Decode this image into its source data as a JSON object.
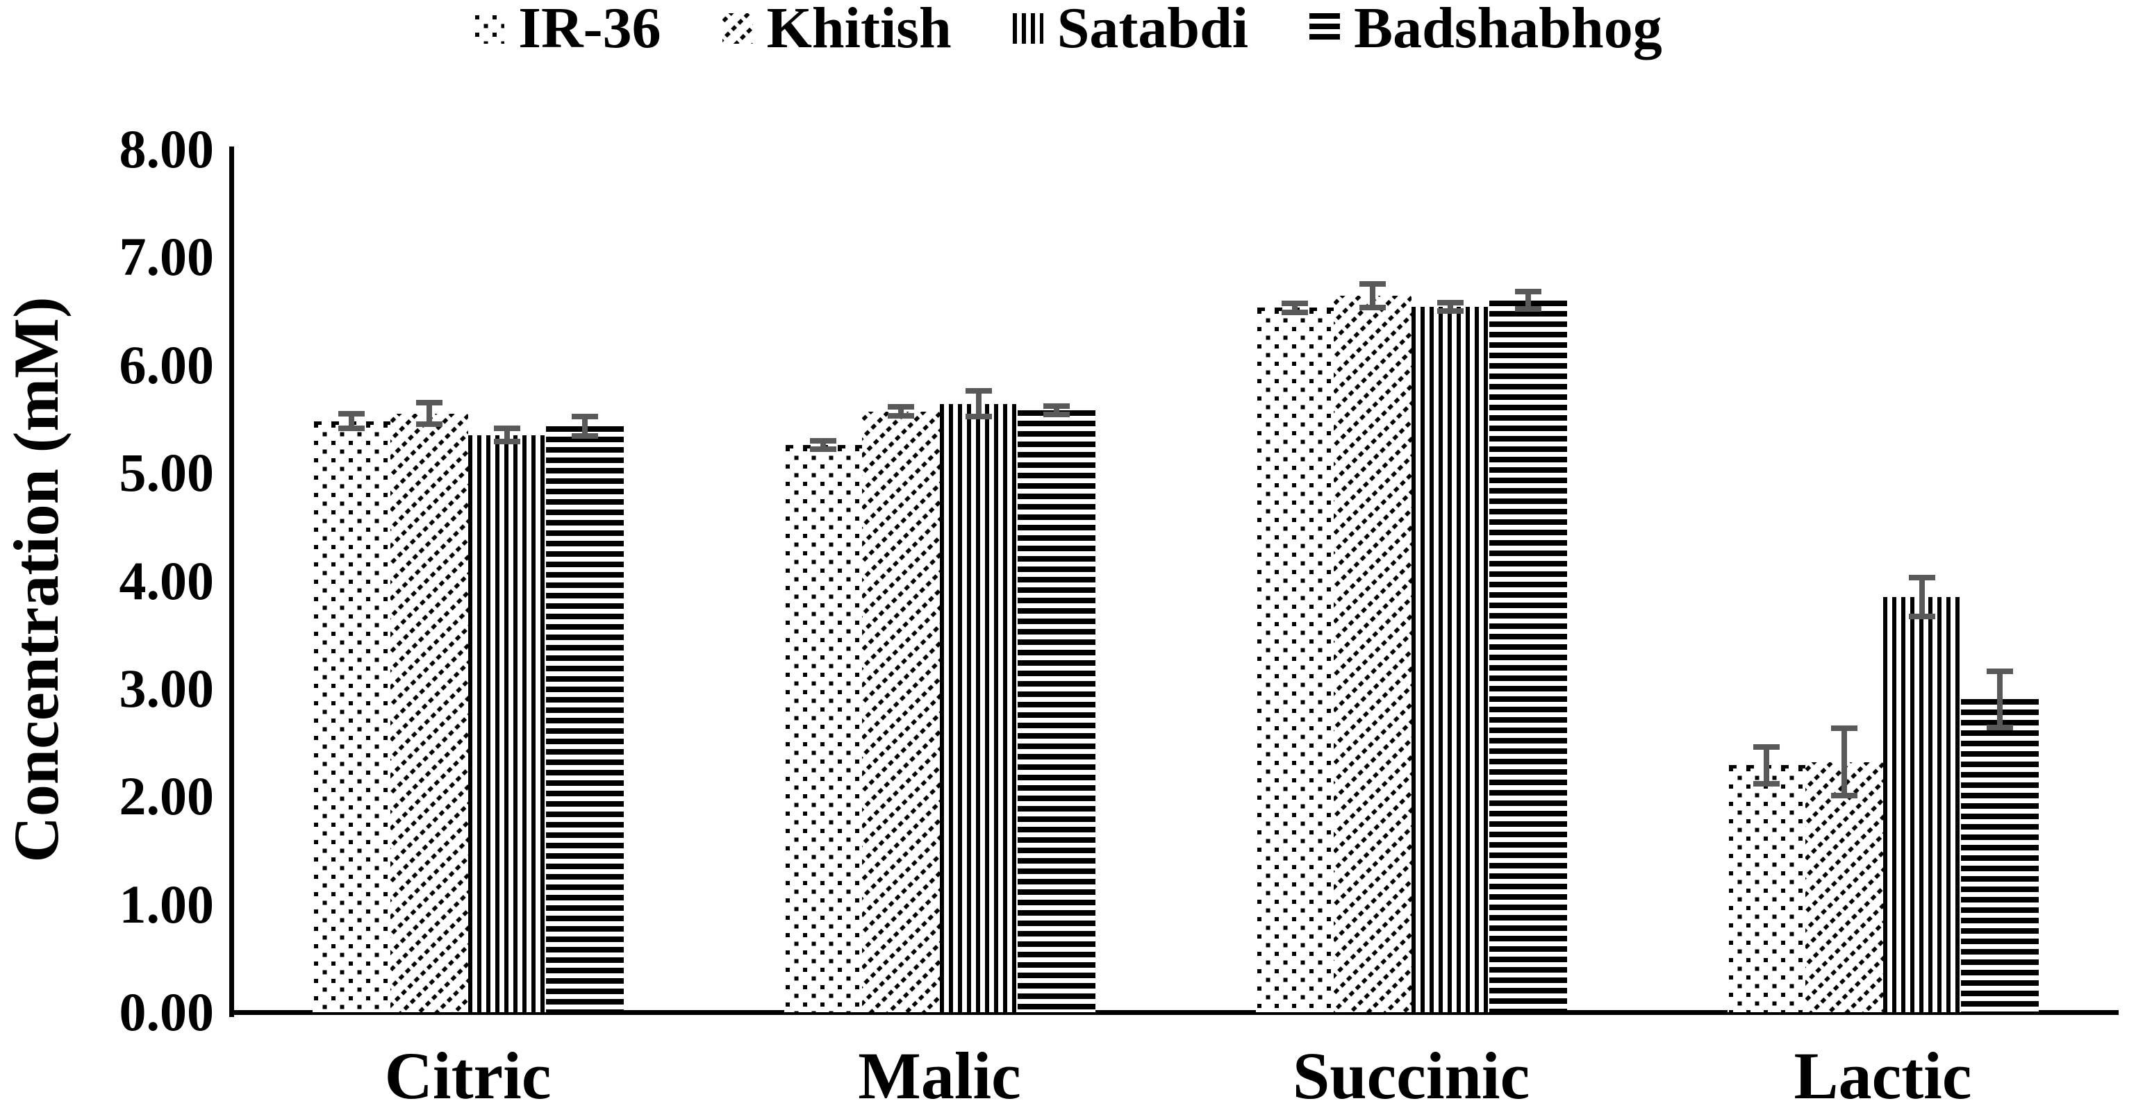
{
  "chart_data": {
    "type": "bar",
    "title": "",
    "xlabel": "",
    "ylabel": "Concentration (mM)",
    "ylim": [
      0,
      8
    ],
    "ytick_step": 1,
    "ytick_labels": [
      "0.00",
      "1.00",
      "2.00",
      "3.00",
      "4.00",
      "5.00",
      "6.00",
      "7.00",
      "8.00"
    ],
    "categories": [
      "Citric",
      "Malic",
      "Succinic",
      "Lactic"
    ],
    "series": [
      {
        "name": "IR-36",
        "pattern": "dots",
        "values": [
          5.48,
          5.26,
          6.53,
          2.29
        ],
        "errors": [
          0.07,
          0.04,
          0.04,
          0.17
        ]
      },
      {
        "name": "Khitish",
        "pattern": "diagonal-stripes",
        "values": [
          5.55,
          5.57,
          6.64,
          2.32
        ],
        "errors": [
          0.1,
          0.04,
          0.11,
          0.31
        ]
      },
      {
        "name": "Satabdi",
        "pattern": "vertical-stripes",
        "values": [
          5.35,
          5.64,
          6.54,
          3.85
        ],
        "errors": [
          0.06,
          0.12,
          0.04,
          0.18
        ]
      },
      {
        "name": "Badshabhog",
        "pattern": "horizontal-stripes",
        "values": [
          5.43,
          5.58,
          6.6,
          2.9
        ],
        "errors": [
          0.09,
          0.04,
          0.08,
          0.26
        ]
      }
    ],
    "legend_position": "top",
    "grid": false,
    "error_bars": true,
    "colors": {
      "bar_foreground": "#000000",
      "bar_background": "#ffffff",
      "error_bar": "#595959",
      "axis": "#000000",
      "text": "#000000"
    }
  }
}
